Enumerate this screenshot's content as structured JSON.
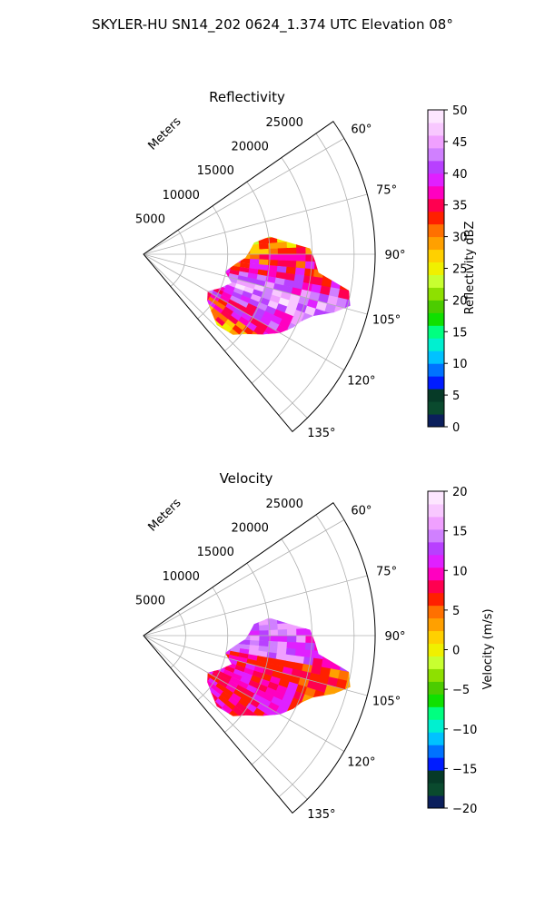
{
  "figure": {
    "title": "SKYLER-HU  SN14_202  0624_1.374 UTC Elevation 08°"
  },
  "chart_data": [
    {
      "type": "heatmap",
      "projection": "polar-sector",
      "title": "Reflectivity",
      "radial_axis_label": "Meters",
      "radial_ticks": [
        5000,
        10000,
        15000,
        20000,
        25000
      ],
      "radial_tick_labels": [
        "5000",
        "10000",
        "15000",
        "20000",
        "25000"
      ],
      "rlim": [
        0,
        27500
      ],
      "azimuth_range_deg": [
        55,
        140
      ],
      "angle_ticks": [
        60,
        75,
        90,
        105,
        120,
        135
      ],
      "angle_tick_labels": [
        "60°",
        "75°",
        "90°",
        "105°",
        "120°",
        "135°"
      ],
      "grid": true,
      "colorbar": {
        "label": "Reflectivity dBZ",
        "range": [
          0,
          50
        ],
        "ticks": [
          0,
          5,
          10,
          15,
          20,
          25,
          30,
          35,
          40,
          45,
          50
        ],
        "tick_labels": [
          "0",
          "5",
          "10",
          "15",
          "20",
          "25",
          "30",
          "35",
          "40",
          "45",
          "50"
        ],
        "colors": [
          "#0b1f5c",
          "#0a4a2e",
          "#063a27",
          "#001cff",
          "#0072ff",
          "#00c2ff",
          "#00f0d0",
          "#00ff80",
          "#10e000",
          "#4ccc00",
          "#8ee000",
          "#c8ff30",
          "#f0f000",
          "#ffd000",
          "#ffa000",
          "#ff7000",
          "#ff2000",
          "#ff0050",
          "#ff00c0",
          "#e020ff",
          "#b840ff",
          "#d080ff",
          "#f0a0ff",
          "#f8c8ff",
          "#fde6ff"
        ]
      }
    },
    {
      "type": "heatmap",
      "projection": "polar-sector",
      "title": "Velocity",
      "radial_axis_label": "Meters",
      "radial_ticks": [
        5000,
        10000,
        15000,
        20000,
        25000
      ],
      "radial_tick_labels": [
        "5000",
        "10000",
        "15000",
        "20000",
        "25000"
      ],
      "rlim": [
        0,
        27500
      ],
      "azimuth_range_deg": [
        55,
        140
      ],
      "angle_ticks": [
        60,
        75,
        90,
        105,
        120,
        135
      ],
      "angle_tick_labels": [
        "60°",
        "75°",
        "90°",
        "105°",
        "120°",
        "135°"
      ],
      "grid": true,
      "colorbar": {
        "label": "Velocity (m/s)",
        "range": [
          -20,
          20
        ],
        "ticks": [
          -20,
          -15,
          -10,
          -5,
          0,
          5,
          10,
          15,
          20
        ],
        "tick_labels": [
          "−20",
          "−15",
          "−10",
          "−5",
          "0",
          "5",
          "10",
          "15",
          "20"
        ],
        "colors": [
          "#0b1f5c",
          "#0a4a2e",
          "#063a27",
          "#001cff",
          "#0072ff",
          "#00c2ff",
          "#00f0d0",
          "#00ff80",
          "#10e000",
          "#4ccc00",
          "#8ee000",
          "#c8ff30",
          "#f0f000",
          "#ffd000",
          "#ffa000",
          "#ff7000",
          "#ff2000",
          "#ff0050",
          "#ff00c0",
          "#e020ff",
          "#b840ff",
          "#d080ff",
          "#f0a0ff",
          "#f8c8ff",
          "#fde6ff"
        ]
      }
    }
  ]
}
